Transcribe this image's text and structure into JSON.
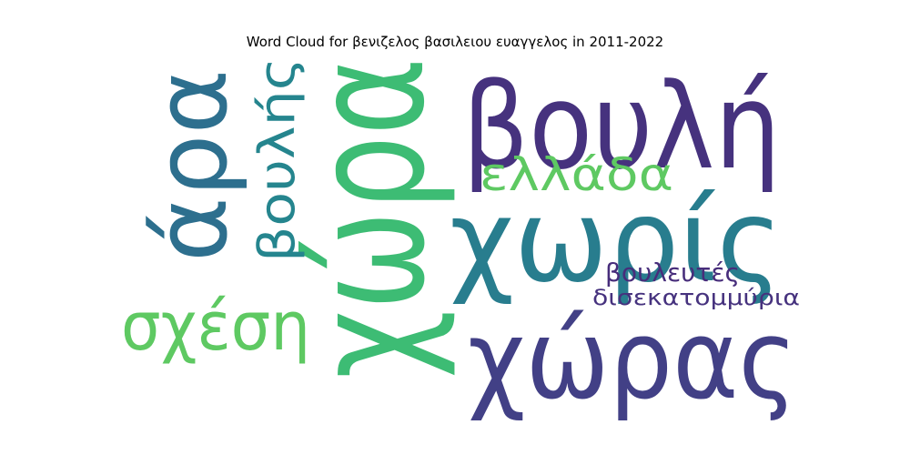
{
  "chart_data": {
    "type": "wordcloud",
    "title": "Word Cloud for βενιζελος βασιλειου ευαγγελος in 2011-2022",
    "colormap": "viridis",
    "words": [
      {
        "text": "χώρα",
        "color": "#3dbc74"
      },
      {
        "text": "βουλή",
        "color": "#46327e"
      },
      {
        "text": "χωρίς",
        "color": "#287d8e"
      },
      {
        "text": "χώρας",
        "color": "#424086"
      },
      {
        "text": "άρα",
        "color": "#2d6f8e"
      },
      {
        "text": "σχέση",
        "color": "#5ec962"
      },
      {
        "text": "ελλάδα",
        "color": "#5ec962"
      },
      {
        "text": "βουλής",
        "color": "#25858e"
      },
      {
        "text": "βουλευτές",
        "color": "#472d7b"
      },
      {
        "text": "δισεκατομμύρια",
        "color": "#46327e"
      }
    ]
  }
}
